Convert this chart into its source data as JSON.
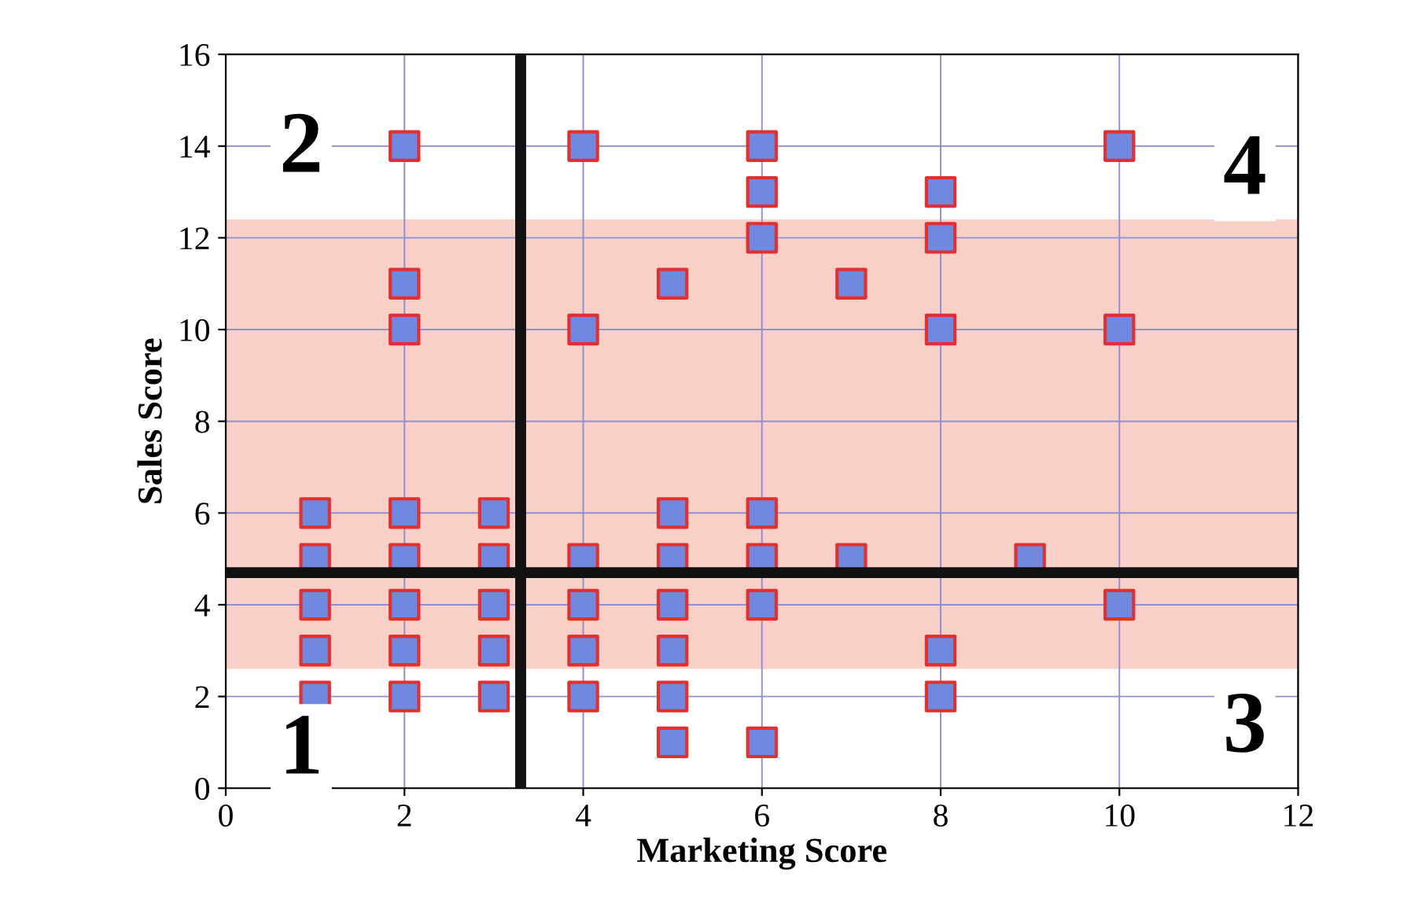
{
  "chart_data": {
    "type": "scatter",
    "xlabel": "Marketing Score",
    "ylabel": "Sales Score",
    "x": [
      1,
      1,
      1,
      1,
      1,
      2,
      2,
      2,
      2,
      2,
      2,
      2,
      2,
      3,
      3,
      3,
      3,
      3,
      4,
      4,
      4,
      4,
      4,
      4,
      5,
      5,
      5,
      5,
      5,
      5,
      5,
      6,
      6,
      6,
      6,
      6,
      6,
      6,
      7,
      7,
      8,
      8,
      8,
      8,
      8,
      9,
      10,
      10,
      10
    ],
    "series": [
      {
        "color": "#7088e0",
        "values": [
          6,
          5,
          4,
          3,
          2,
          14,
          11,
          10,
          6,
          5,
          4,
          3,
          2,
          6,
          5,
          4,
          3,
          2,
          14,
          10,
          5,
          4,
          3,
          2,
          11,
          6,
          5,
          4,
          3,
          2,
          1,
          14,
          13,
          12,
          6,
          5,
          4,
          1,
          11,
          5,
          13,
          12,
          10,
          3,
          2,
          5,
          14,
          10,
          4
        ]
      }
    ],
    "xlim": [
      0,
      12
    ],
    "ylim": [
      0,
      16
    ],
    "xticks": [
      0,
      2,
      4,
      6,
      8,
      10,
      12
    ],
    "yticks": [
      0,
      2,
      4,
      6,
      8,
      10,
      12,
      14,
      16
    ],
    "grid": true,
    "marker": "square",
    "bands": [
      {
        "axis": "y",
        "from": 2.6,
        "to": 12.4,
        "color": "#f9d0c8"
      }
    ],
    "ref_lines": [
      {
        "axis": "x",
        "value": 3.3,
        "color": "#111111"
      },
      {
        "axis": "y",
        "value": 4.7,
        "color": "#111111"
      }
    ],
    "annotations": [
      "1",
      "2",
      "3",
      "4"
    ]
  }
}
